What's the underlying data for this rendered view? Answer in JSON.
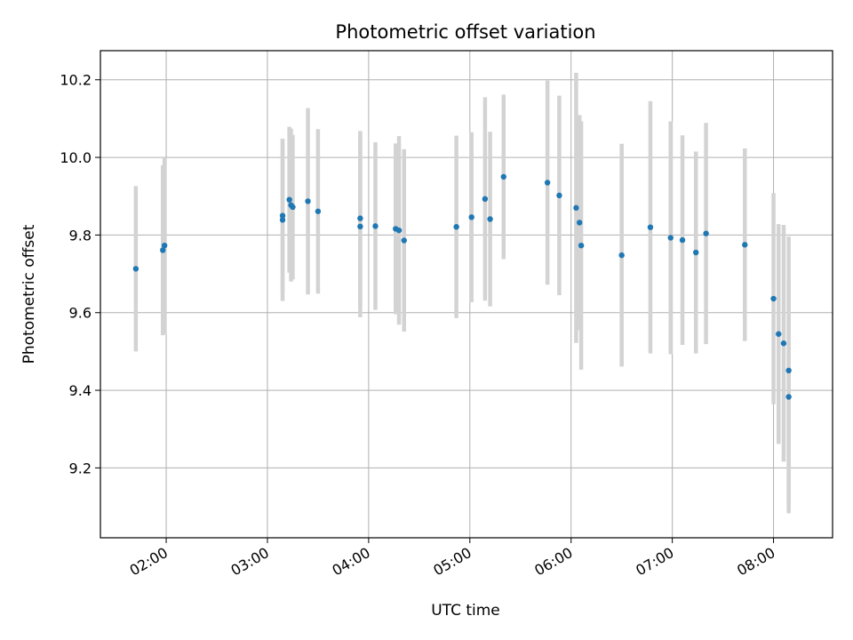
{
  "chart_data": {
    "type": "scatter",
    "title": "Photometric offset variation",
    "xlabel": "UTC time",
    "ylabel": "Photometric offset",
    "ylim": [
      9.02,
      10.275
    ],
    "xlim": [
      "01:21",
      "08:35"
    ],
    "grid": true,
    "colors": {
      "marker": "#1f77b4",
      "errorbar": "#d3d3d3",
      "grid": "#b0b0b0"
    },
    "x_ticks": [
      "02:00",
      "03:00",
      "04:00",
      "05:00",
      "06:00",
      "07:00",
      "08:00"
    ],
    "y_ticks": [
      "9.2",
      "9.4",
      "9.6",
      "9.8",
      "10.0",
      "10.2"
    ],
    "points": [
      {
        "t": "01:42",
        "y": 9.713,
        "err": 0.213
      },
      {
        "t": "01:58",
        "y": 9.761,
        "err": 0.219
      },
      {
        "t": "01:59",
        "y": 9.773,
        "err": 0.227
      },
      {
        "t": "03:09",
        "y": 9.839,
        "err": 0.209
      },
      {
        "t": "03:09",
        "y": 9.85,
        "err": 0.198
      },
      {
        "t": "03:13",
        "y": 9.891,
        "err": 0.188
      },
      {
        "t": "03:14",
        "y": 9.877,
        "err": 0.197
      },
      {
        "t": "03:15",
        "y": 9.872,
        "err": 0.186
      },
      {
        "t": "03:24",
        "y": 9.887,
        "err": 0.24
      },
      {
        "t": "03:30",
        "y": 9.861,
        "err": 0.212
      },
      {
        "t": "03:55",
        "y": 9.843,
        "err": 0.225
      },
      {
        "t": "03:55",
        "y": 9.822,
        "err": 0.234
      },
      {
        "t": "04:04",
        "y": 9.823,
        "err": 0.216
      },
      {
        "t": "04:16",
        "y": 9.816,
        "err": 0.22
      },
      {
        "t": "04:18",
        "y": 9.812,
        "err": 0.243
      },
      {
        "t": "04:21",
        "y": 9.786,
        "err": 0.235
      },
      {
        "t": "04:52",
        "y": 9.821,
        "err": 0.235
      },
      {
        "t": "05:01",
        "y": 9.846,
        "err": 0.219
      },
      {
        "t": "05:09",
        "y": 9.893,
        "err": 0.262
      },
      {
        "t": "05:12",
        "y": 9.841,
        "err": 0.225
      },
      {
        "t": "05:20",
        "y": 9.95,
        "err": 0.212
      },
      {
        "t": "05:46",
        "y": 9.935,
        "err": 0.263
      },
      {
        "t": "05:53",
        "y": 9.902,
        "err": 0.257
      },
      {
        "t": "06:03",
        "y": 9.87,
        "err": 0.348
      },
      {
        "t": "06:05",
        "y": 9.832,
        "err": 0.277
      },
      {
        "t": "06:06",
        "y": 9.773,
        "err": 0.32
      },
      {
        "t": "06:30",
        "y": 9.748,
        "err": 0.287
      },
      {
        "t": "06:47",
        "y": 9.82,
        "err": 0.325
      },
      {
        "t": "06:59",
        "y": 9.793,
        "err": 0.3
      },
      {
        "t": "07:06",
        "y": 9.787,
        "err": 0.27
      },
      {
        "t": "07:14",
        "y": 9.755,
        "err": 0.26
      },
      {
        "t": "07:20",
        "y": 9.804,
        "err": 0.285
      },
      {
        "t": "07:43",
        "y": 9.775,
        "err": 0.248
      },
      {
        "t": "08:00",
        "y": 9.636,
        "err": 0.272
      },
      {
        "t": "08:03",
        "y": 9.545,
        "err": 0.283
      },
      {
        "t": "08:06",
        "y": 9.521,
        "err": 0.305
      },
      {
        "t": "08:09",
        "y": 9.451,
        "err": 0.345
      },
      {
        "t": "08:09",
        "y": 9.383,
        "err": 0.3
      }
    ]
  }
}
